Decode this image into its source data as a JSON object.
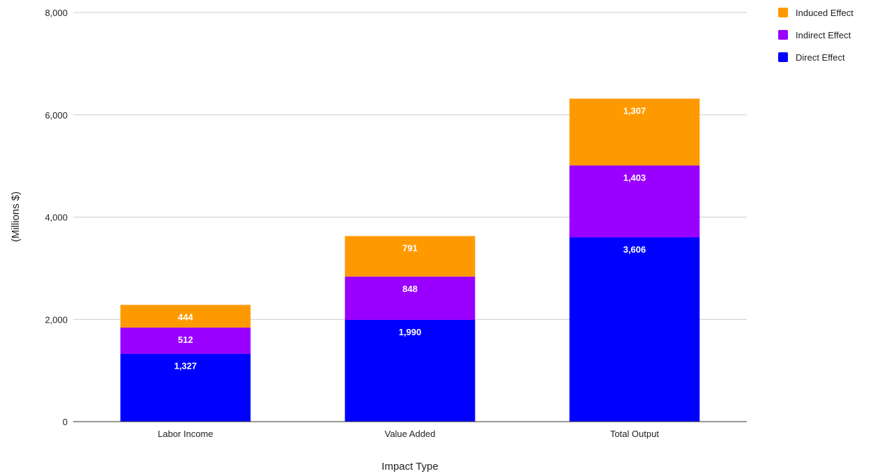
{
  "chart_data": {
    "type": "bar",
    "stacked": true,
    "categories": [
      "Labor Income",
      "Value Added",
      "Total Output"
    ],
    "series": [
      {
        "name": "Direct Effect",
        "color": "#0000ff",
        "values": [
          1327,
          1990,
          3606
        ],
        "labels": [
          "1,327",
          "1,990",
          "3,606"
        ]
      },
      {
        "name": "Indirect Effect",
        "color": "#9900ff",
        "values": [
          512,
          848,
          1403
        ],
        "labels": [
          "512",
          "848",
          "1,403"
        ]
      },
      {
        "name": "Induced Effect",
        "color": "#ff9900",
        "values": [
          444,
          791,
          1307
        ],
        "labels": [
          "444",
          "791",
          "1,307"
        ]
      }
    ],
    "xlabel": "Impact Type",
    "ylabel": "(Millions $)",
    "ylim": [
      0,
      8000
    ],
    "yticks": [
      0,
      2000,
      4000,
      6000,
      8000
    ],
    "ytick_labels": [
      "0",
      "2,000",
      "4,000",
      "6,000",
      "8,000"
    ],
    "grid": true,
    "legend_position": "top-right",
    "legend_order": [
      "Induced Effect",
      "Indirect Effect",
      "Direct Effect"
    ]
  }
}
